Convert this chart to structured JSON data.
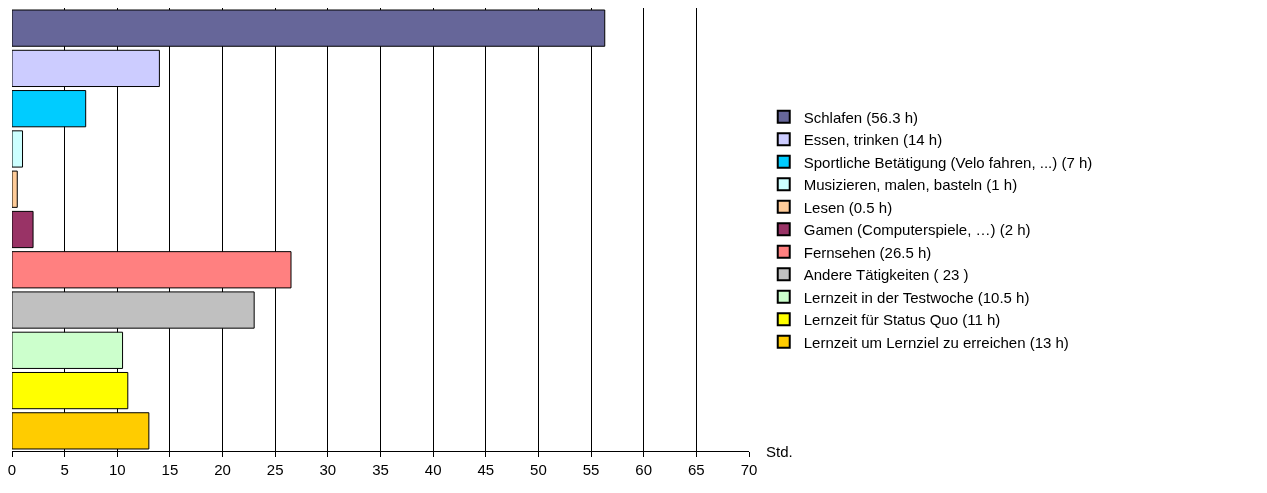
{
  "chart_data": {
    "type": "bar",
    "orientation": "horizontal",
    "xlabel": "Std.",
    "categories": [
      null,
      null,
      null,
      null,
      null,
      null,
      null,
      null,
      null,
      null,
      null
    ],
    "series": [
      {
        "name": "Schlafen (56.3 h)",
        "color": "#666699",
        "values": [
          56.3,
          null,
          null,
          null,
          null,
          null,
          null,
          null,
          null,
          null,
          null
        ]
      },
      {
        "name": "Essen, trinken (14 h)",
        "color": "#ccccff",
        "values": [
          null,
          14,
          null,
          null,
          null,
          null,
          null,
          null,
          null,
          null,
          null
        ]
      },
      {
        "name": "Sportliche Betätigung (Velo fahren, ...) (7 h)",
        "color": "#00ccff",
        "values": [
          null,
          null,
          7,
          null,
          null,
          null,
          null,
          null,
          null,
          null,
          null
        ]
      },
      {
        "name": "Musizieren, malen, basteln (1 h)",
        "color": "#ccffff",
        "values": [
          null,
          null,
          null,
          1,
          null,
          null,
          null,
          null,
          null,
          null,
          null
        ]
      },
      {
        "name": "Lesen (0.5 h)",
        "color": "#ffcc99",
        "values": [
          null,
          null,
          null,
          null,
          0.5,
          null,
          null,
          null,
          null,
          null,
          null
        ]
      },
      {
        "name": "Gamen (Computerspiele, …) (2 h)",
        "color": "#993366",
        "values": [
          null,
          null,
          null,
          null,
          null,
          2,
          null,
          null,
          null,
          null,
          null
        ]
      },
      {
        "name": "Fernsehen (26.5 h)",
        "color": "#ff8080",
        "values": [
          null,
          null,
          null,
          null,
          null,
          null,
          26.5,
          null,
          null,
          null,
          null
        ]
      },
      {
        "name": "Andere Tätigkeiten ( 23 )",
        "color": "#c0c0c0",
        "values": [
          null,
          null,
          null,
          null,
          null,
          null,
          null,
          23,
          null,
          null,
          null
        ]
      },
      {
        "name": "Lernzeit in der Testwoche (10.5 h)",
        "color": "#ccffcc",
        "values": [
          null,
          null,
          null,
          null,
          null,
          null,
          null,
          null,
          10.5,
          null,
          null
        ]
      },
      {
        "name": "Lernzeit für Status Quo (11 h)",
        "color": "#ffff00",
        "values": [
          null,
          null,
          null,
          null,
          null,
          null,
          null,
          null,
          null,
          11,
          null
        ]
      },
      {
        "name": "Lernzeit um Lernziel zu erreichen (13 h)",
        "color": "#ffcc00",
        "values": [
          null,
          null,
          null,
          null,
          null,
          null,
          null,
          null,
          null,
          null,
          13
        ]
      }
    ],
    "xlim": [
      0,
      70
    ],
    "xticks": [
      0,
      5,
      10,
      15,
      20,
      25,
      30,
      35,
      40,
      45,
      50,
      55,
      60,
      65,
      70
    ],
    "grid": "x",
    "legend": "right",
    "tick_labels": "x"
  }
}
